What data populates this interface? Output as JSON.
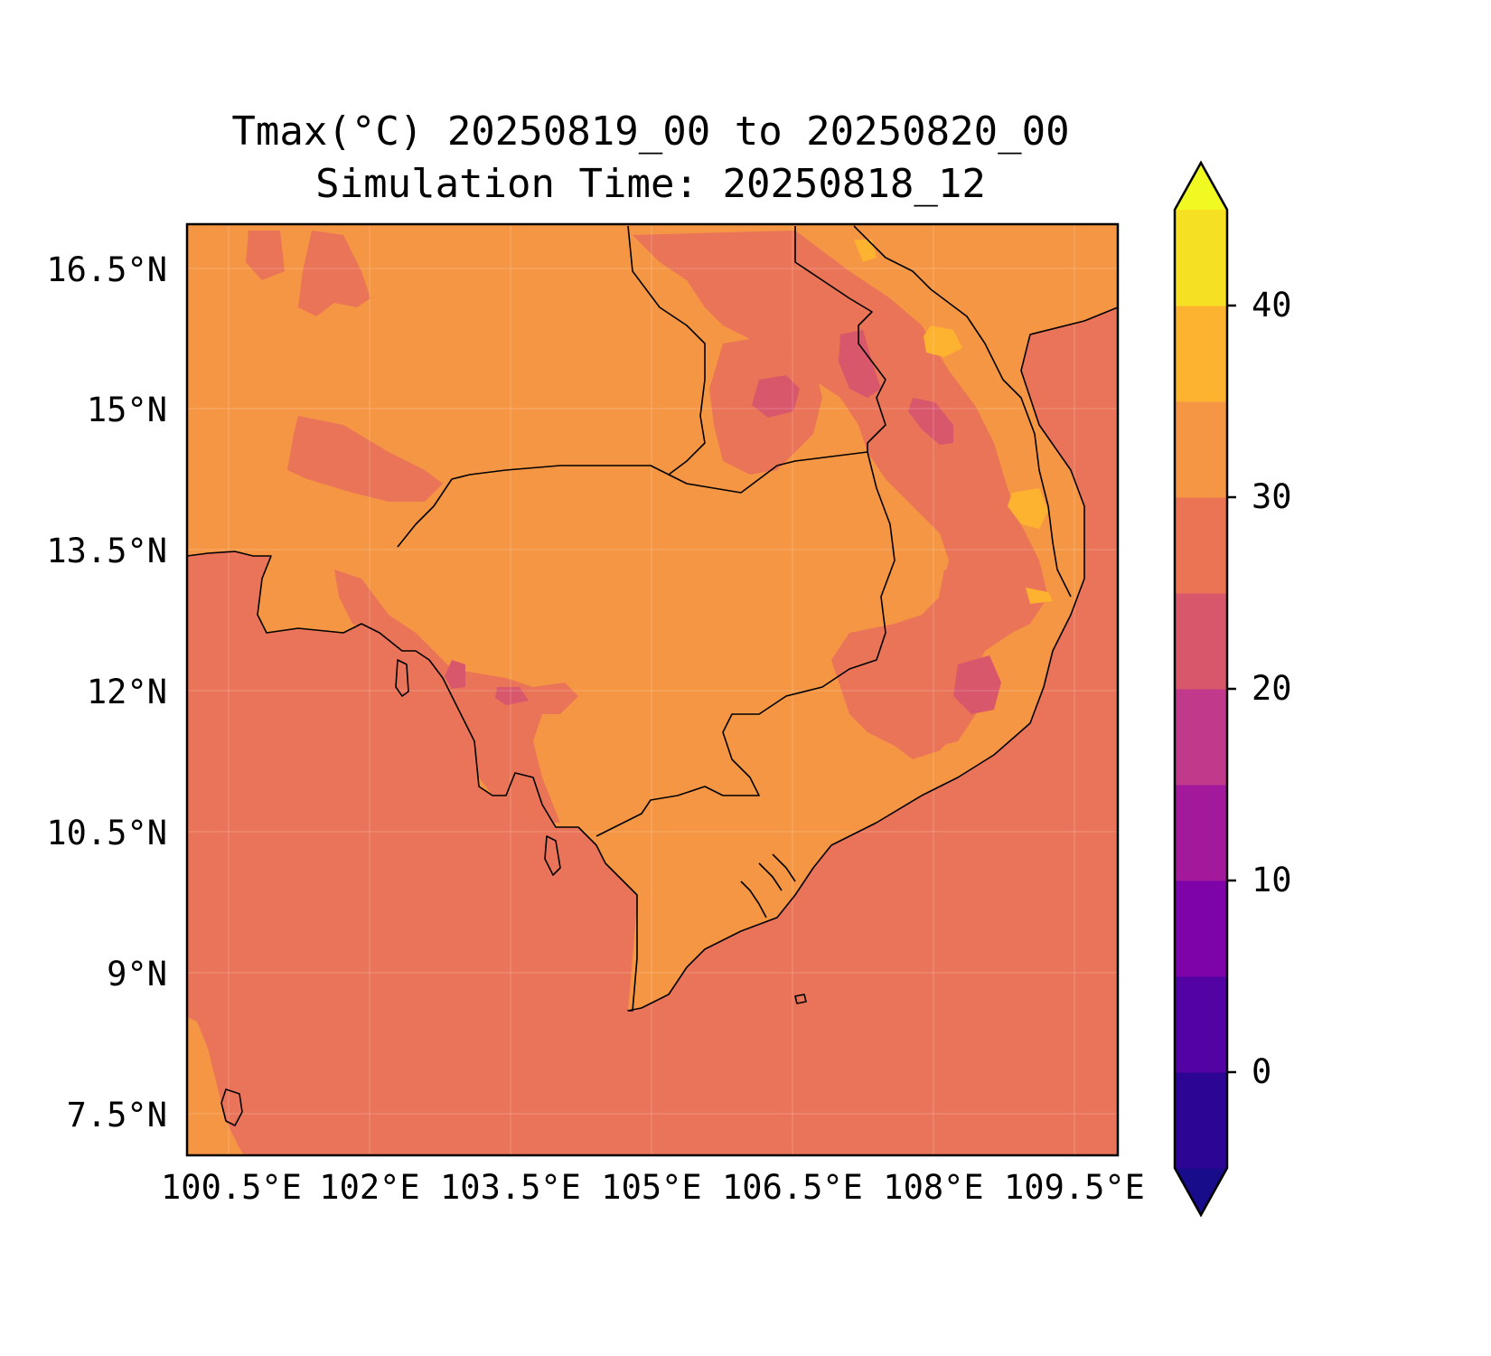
{
  "title_line1": "Tmax(°C) 20250819_00 to 20250820_00",
  "title_line2": "Simulation Time: 20250818_12",
  "lat_labels": [
    "16.5°N",
    "15°N",
    "13.5°N",
    "12°N",
    "10.5°N",
    "9°N",
    "7.5°N"
  ],
  "lon_labels": [
    "100.5°E",
    "102°E",
    "103.5°E",
    "105°E",
    "106.5°E",
    "108°E",
    "109.5°E"
  ],
  "colorbar": {
    "tick_labels": [
      "0",
      "10",
      "20",
      "30",
      "40"
    ],
    "levels": [
      -5,
      0,
      5,
      10,
      15,
      20,
      25,
      30,
      35,
      40,
      45
    ],
    "colors": [
      "#180c8a",
      "#2c0594",
      "#5302a3",
      "#7e03a8",
      "#a2199b",
      "#c0398b",
      "#d8576b",
      "#eb7455",
      "#f59644",
      "#fdb32f",
      "#f6e024",
      "#f0f921"
    ],
    "extend": "both"
  },
  "map_colors": {
    "sea": "#ea7459",
    "land": "#f59644",
    "warm_patch": "#e97457",
    "cool_patch": "#d8576b",
    "hot_patch": "#fdb32f",
    "coastline": "#000000"
  }
}
